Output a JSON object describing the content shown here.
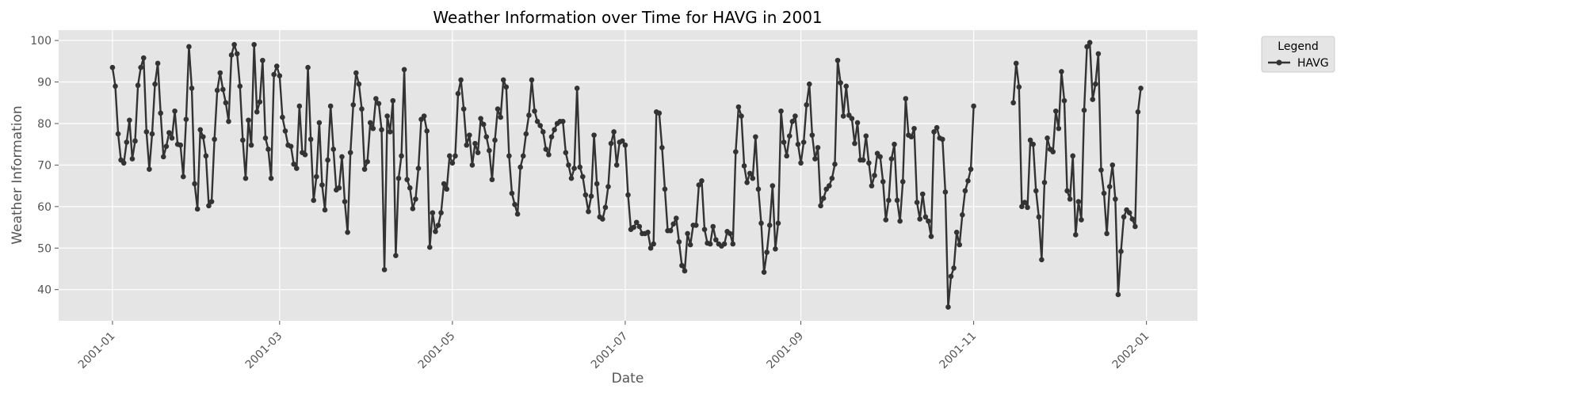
{
  "chart_data": {
    "type": "line",
    "title": "Weather Information over Time for HAVG in 2001",
    "xlabel": "Date",
    "ylabel": "Weather Information",
    "xlim": [
      "2000-12-13",
      "2002-01-19"
    ],
    "ylim": [
      32.5,
      102.5
    ],
    "x_ticks": [
      "2001-01",
      "2001-03",
      "2001-05",
      "2001-07",
      "2001-09",
      "2001-11",
      "2002-01"
    ],
    "y_ticks": [
      40,
      50,
      60,
      70,
      80,
      90,
      100
    ],
    "grid": true,
    "legend": {
      "title": "Legend",
      "placement": "outside top-right",
      "entries": [
        "HAVG"
      ]
    },
    "series": [
      {
        "name": "HAVG",
        "color": "#333333",
        "segments": [
          {
            "start_date": "2001-01-01",
            "values": [
              93.5,
              89,
              77.5,
              71.2,
              70.5,
              75.5,
              80.8,
              71.5,
              75.8,
              89.2,
              93.5,
              95.8,
              78,
              69,
              77.5,
              89.5,
              94.5,
              82.5,
              72,
              74.5,
              77.8,
              76.5,
              83,
              75,
              74.8,
              67.2,
              81,
              98.5,
              88.5,
              65.5,
              59.4,
              78.5,
              76.8,
              72.2,
              60.2,
              61.2,
              76.2,
              88,
              92.2,
              88.2,
              85,
              80.5,
              96.5,
              99,
              96.8,
              89,
              76,
              66.8,
              80.8,
              74.8,
              99,
              82.8,
              85.2,
              95.2,
              76.5,
              73.8,
              66.8,
              91.8,
              93.8,
              91.5,
              81.5,
              78.2,
              74.8,
              74.5,
              70.2,
              69.2,
              84.2,
              73,
              72.5,
              93.5,
              76.2,
              61.5,
              67.2,
              80.2,
              65.2,
              59.2,
              71.2,
              84.2,
              73.8,
              64,
              64.5,
              72,
              61.2,
              53.8,
              73,
              84.5,
              92.2,
              89.5,
              83.5,
              69,
              70.8,
              80.2,
              78.8,
              86,
              84.8,
              78.5,
              44.8,
              81.8,
              78,
              85.5,
              48.2,
              66.8,
              72.2,
              93,
              66.5,
              64.5,
              59.5,
              61.8,
              69.2,
              81,
              81.8,
              78.2,
              50.2,
              58.5,
              54,
              55.5,
              58.5,
              65.5,
              64.2,
              72.2,
              70.5,
              72.2,
              87.2,
              90.5,
              83.5,
              74.8,
              77.2,
              70,
              75.2,
              73,
              81.2,
              79.8,
              76.8,
              73.5,
              66.5,
              76,
              83.5,
              81.5,
              90.5,
              88.8,
              72.2,
              63.2,
              60.5,
              58.2,
              69.5,
              72.2,
              77.5,
              82,
              90.5,
              83,
              80.5,
              79.5,
              78,
              73.8,
              72.5,
              76.8,
              78.5,
              80,
              80.5,
              80.5,
              73,
              70,
              66.8,
              69.2,
              88.5,
              69.5,
              67.2,
              62.8,
              58.8,
              62.5,
              77.2,
              65.5,
              57.5,
              57,
              59.8,
              64.8,
              75.2,
              78,
              70,
              75.5,
              75.8,
              74.8,
              62.8,
              54.5,
              55,
              56.2,
              55.2,
              53.5,
              53.5,
              53.8,
              50,
              51,
              82.8,
              82.5,
              74.2,
              64.2,
              54.2,
              54.2,
              55.8,
              57.2,
              51.5,
              45.8,
              44.5,
              53.5,
              50.8,
              55.5,
              55.5,
              65.2,
              66.2,
              54.5,
              51.2,
              51,
              55.2,
              52,
              51,
              50.5,
              51,
              54,
              53.5,
              51,
              73.2,
              84,
              81.8,
              69.8,
              65.8,
              68,
              66.8,
              76.8,
              64.2,
              56,
              44.2,
              49,
              55.5,
              65,
              49.8,
              56,
              83,
              75.5,
              72.2,
              77,
              80.5,
              81.8,
              75,
              70.5,
              75.5,
              84.5,
              89.5,
              77.2,
              71.5,
              74.2,
              60.2,
              62,
              64.2,
              65,
              66.8,
              70.2,
              95.2,
              89.8,
              81.8,
              89,
              82,
              81.2,
              75.2,
              80.2,
              71.2,
              71.2,
              77,
              70.5,
              65,
              67.5,
              72.8,
              72,
              66,
              56.8,
              61.5,
              71.5,
              75,
              61.5,
              56.5,
              66,
              86,
              77.2,
              76.8,
              78.8,
              61,
              57,
              63,
              57.5,
              56.5,
              52.8,
              78,
              79,
              76.5,
              76.2,
              63.5,
              35.8,
              43.2,
              45.2,
              53.8,
              50.8,
              58,
              63.8,
              66.2,
              69,
              84.2
            ]
          },
          {
            "start_date": "2001-11-15",
            "values": [
              85,
              94.5,
              88.8,
              60,
              61,
              59.8,
              76,
              75,
              63.8,
              57.5,
              47.2,
              65.8,
              76.5,
              73.8,
              73.2,
              83,
              78.8,
              92.5,
              85.5,
              63.8,
              61.8,
              72.2,
              53.2,
              61.2,
              56.8,
              83.2,
              98.5,
              99.5,
              85.8,
              89.5,
              96.8,
              68.8,
              63.2,
              53.5,
              64.8,
              70,
              61.8,
              38.8,
              49.2,
              57.5,
              59.2,
              58.5,
              57,
              55.2,
              82.8,
              88.5
            ]
          }
        ]
      }
    ]
  }
}
